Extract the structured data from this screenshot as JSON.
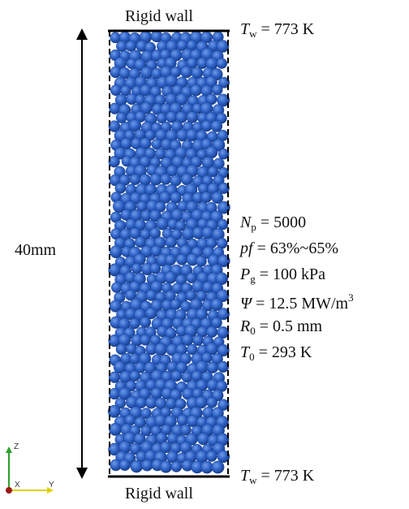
{
  "top_wall": {
    "label": "Rigid wall",
    "temp_symbol": "T",
    "temp_sub": "w",
    "temp_value": "= 773 K"
  },
  "bottom_wall": {
    "label": "Rigid wall",
    "temp_symbol": "T",
    "temp_sub": "w",
    "temp_value": "= 773 K"
  },
  "height_label": "40mm",
  "parameters": [
    {
      "symbol": "N",
      "sub": "p",
      "value": "= 5000"
    },
    {
      "symbol": "pf",
      "sub": "",
      "value": "= 63%~65%"
    },
    {
      "symbol": "P",
      "sub": "g",
      "value": "= 100 kPa"
    },
    {
      "symbol": "Ψ",
      "sub": "",
      "value": "= 12.5 MW/m",
      "sup": "3"
    },
    {
      "symbol": "R",
      "sub": "0",
      "value": "= 0.5 mm"
    },
    {
      "symbol": "T",
      "sub": "0",
      "value": "= 293 K"
    }
  ],
  "axes": {
    "z": "Z",
    "x": "X",
    "y": "Y"
  },
  "colors": {
    "particle": "#2f63c8",
    "particle_dark": "#1d4596",
    "particle_light": "#5a88dc",
    "wall": "#000000"
  }
}
